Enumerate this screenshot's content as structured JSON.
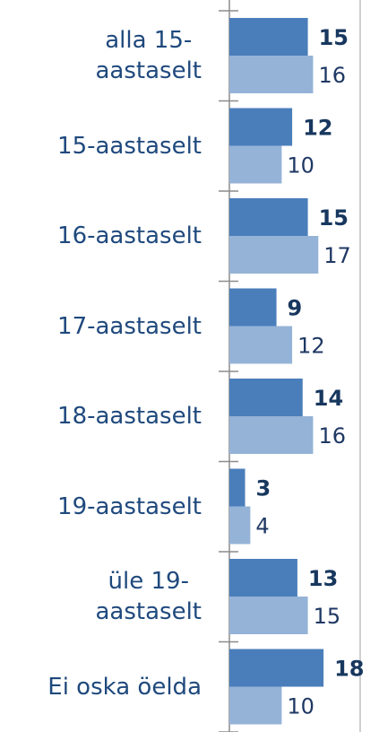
{
  "chart_data": {
    "type": "bar",
    "orientation": "horizontal",
    "categories": [
      "alla 15-\naastaselt",
      "15-aastaselt",
      "16-aastaselt",
      "17-aastaselt",
      "18-aastaselt",
      "19-aastaselt",
      "üle 19-\naastaselt",
      "Ei oska öelda"
    ],
    "series": [
      {
        "color": "#4a7ebb",
        "values": [
          15,
          12,
          15,
          9,
          14,
          3,
          13,
          18
        ]
      },
      {
        "color": "#95b3d7",
        "values": [
          16,
          10,
          17,
          12,
          16,
          4,
          15,
          10
        ]
      }
    ],
    "xlim": [
      0,
      25
    ]
  }
}
